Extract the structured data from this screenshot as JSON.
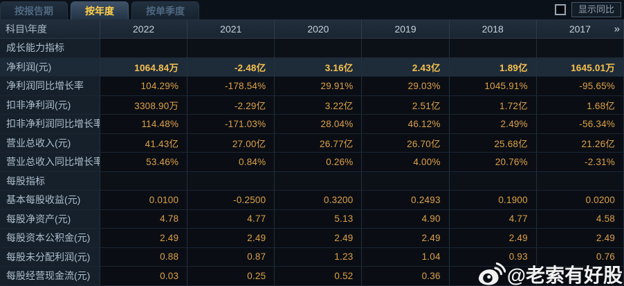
{
  "tabs": [
    {
      "label": "按报告期",
      "active": false
    },
    {
      "label": "按年度",
      "active": true
    },
    {
      "label": "按单季度",
      "active": false
    }
  ],
  "controls": {
    "show_yoy_label": "显示同比",
    "checkbox_checked": false
  },
  "table": {
    "corner_label": "科目\\年度",
    "years": [
      "2022",
      "2021",
      "2020",
      "2019",
      "2018",
      "2017"
    ],
    "more_icon": "»",
    "rows": [
      {
        "label": "成长能力指标",
        "type": "section",
        "values": [
          "",
          "",
          "",
          "",
          "",
          ""
        ]
      },
      {
        "label": "净利润(元)",
        "type": "highlight",
        "values": [
          "1064.84万",
          "-2.48亿",
          "3.16亿",
          "2.43亿",
          "1.89亿",
          "1645.01万"
        ]
      },
      {
        "label": "净利润同比增长率",
        "type": "data",
        "values": [
          "104.29%",
          "-178.54%",
          "29.91%",
          "29.03%",
          "1045.91%",
          "-95.65%"
        ]
      },
      {
        "label": "扣非净利润(元)",
        "type": "data",
        "values": [
          "3308.90万",
          "-2.29亿",
          "3.22亿",
          "2.51亿",
          "1.72亿",
          "1.68亿"
        ]
      },
      {
        "label": "扣非净利润同比增长率",
        "type": "data",
        "values": [
          "114.48%",
          "-171.03%",
          "28.04%",
          "46.12%",
          "2.49%",
          "-56.34%"
        ]
      },
      {
        "label": "营业总收入(元)",
        "type": "data",
        "values": [
          "41.43亿",
          "27.00亿",
          "26.77亿",
          "26.70亿",
          "25.68亿",
          "21.26亿"
        ]
      },
      {
        "label": "营业总收入同比增长率",
        "type": "data",
        "values": [
          "53.46%",
          "0.84%",
          "0.26%",
          "4.00%",
          "20.76%",
          "-2.31%"
        ]
      },
      {
        "label": "每股指标",
        "type": "section",
        "values": [
          "",
          "",
          "",
          "",
          "",
          ""
        ]
      },
      {
        "label": "基本每股收益(元)",
        "type": "data",
        "values": [
          "0.0100",
          "-0.2500",
          "0.3200",
          "0.2493",
          "0.1900",
          "0.0200"
        ]
      },
      {
        "label": "每股净资产(元)",
        "type": "data",
        "values": [
          "4.78",
          "4.77",
          "5.13",
          "4.90",
          "4.77",
          "4.58"
        ]
      },
      {
        "label": "每股资本公积金(元)",
        "type": "data",
        "values": [
          "2.49",
          "2.49",
          "2.49",
          "2.49",
          "2.49",
          "2.49"
        ]
      },
      {
        "label": "每股未分配利润(元)",
        "type": "data",
        "values": [
          "0.88",
          "0.87",
          "1.23",
          "1.04",
          "0.93",
          "0.76"
        ]
      },
      {
        "label": "每股经营现金流(元)",
        "type": "data",
        "values": [
          "0.03",
          "0.25",
          "0.52",
          "0.36",
          "",
          ""
        ]
      }
    ]
  },
  "watermark": {
    "text": "@老索有好股",
    "icon": "weibo-icon"
  },
  "colors": {
    "value_text": "#dfa147",
    "highlight_value_text": "#f7c24e",
    "active_tab_text": "#ffd04a",
    "label_text": "#aebfcc",
    "header_text": "#c6d2dc",
    "row_highlight_bg": "#1e2b39",
    "label_col_bg": "#15202b",
    "data_cell_bg": "#0a0e14",
    "page_bg": "#0a0f16"
  }
}
